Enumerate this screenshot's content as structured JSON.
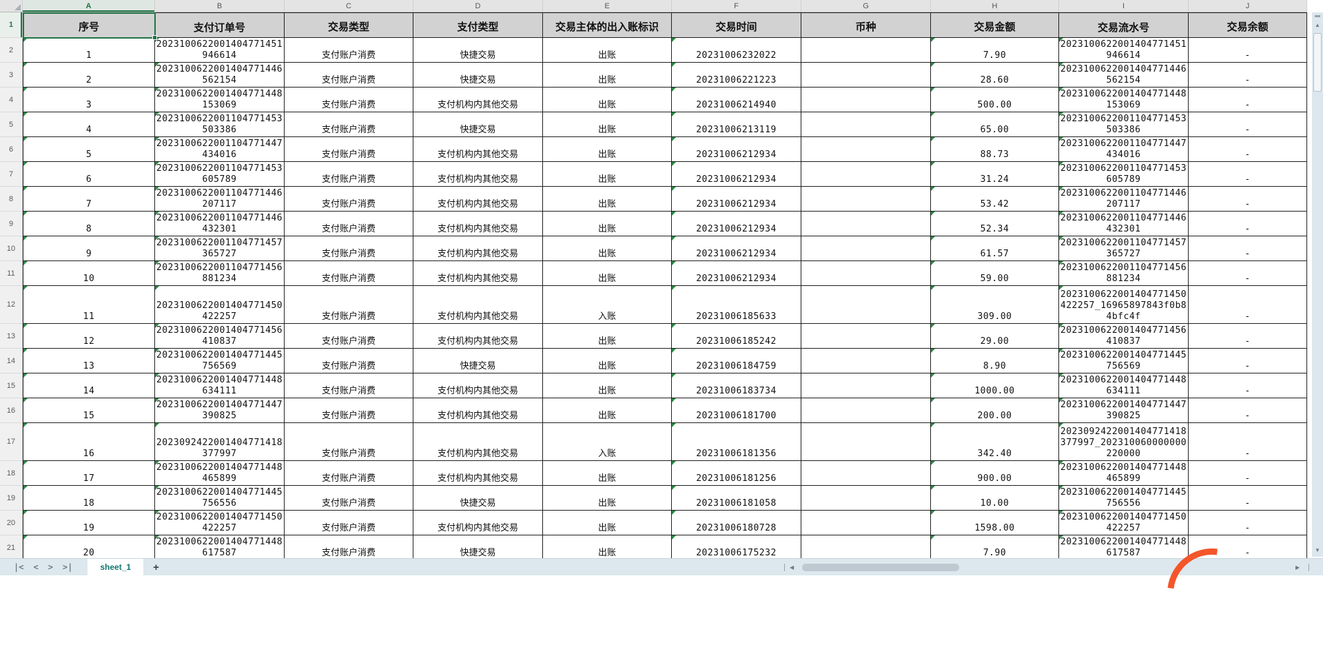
{
  "sheet": {
    "column_letters": [
      "A",
      "B",
      "C",
      "D",
      "E",
      "F",
      "G",
      "H",
      "I",
      "J"
    ],
    "selected_cell": "A1",
    "header_row": [
      "序号",
      "支付订单号",
      "交易类型",
      "支付类型",
      "交易主体的出入账标识",
      "交易时间",
      "币种",
      "交易金额",
      "交易流水号",
      "交易余额"
    ],
    "row_numbers": [
      "1",
      "2",
      "3",
      "4",
      "5",
      "6",
      "7",
      "8",
      "9",
      "10",
      "11",
      "12",
      "13",
      "14",
      "15",
      "16",
      "17",
      "18",
      "19",
      "20",
      "21"
    ],
    "error_marker_columns": [
      "no",
      "order",
      "time",
      "amount",
      "flow_no"
    ],
    "rows": [
      {
        "no": "1",
        "order": "2023100622001404771451\n946614",
        "txn_type": "支付账户消费",
        "pay_type": "快捷交易",
        "inout": "出账",
        "time": "20231006232022",
        "currency": "",
        "amount": "7.90",
        "flow_no": "2023100622001404771451\n946614",
        "balance": "-",
        "tall": false
      },
      {
        "no": "2",
        "order": "2023100622001404771446\n562154",
        "txn_type": "支付账户消费",
        "pay_type": "快捷交易",
        "inout": "出账",
        "time": "20231006221223",
        "currency": "",
        "amount": "28.60",
        "flow_no": "2023100622001404771446\n562154",
        "balance": "-",
        "tall": false
      },
      {
        "no": "3",
        "order": "2023100622001404771448\n153069",
        "txn_type": "支付账户消费",
        "pay_type": "支付机构内其他交易",
        "inout": "出账",
        "time": "20231006214940",
        "currency": "",
        "amount": "500.00",
        "flow_no": "2023100622001404771448\n153069",
        "balance": "-",
        "tall": false
      },
      {
        "no": "4",
        "order": "2023100622001104771453\n503386",
        "txn_type": "支付账户消费",
        "pay_type": "快捷交易",
        "inout": "出账",
        "time": "20231006213119",
        "currency": "",
        "amount": "65.00",
        "flow_no": "2023100622001104771453\n503386",
        "balance": "-",
        "tall": false
      },
      {
        "no": "5",
        "order": "2023100622001104771447\n434016",
        "txn_type": "支付账户消费",
        "pay_type": "支付机构内其他交易",
        "inout": "出账",
        "time": "20231006212934",
        "currency": "",
        "amount": "88.73",
        "flow_no": "2023100622001104771447\n434016",
        "balance": "-",
        "tall": false
      },
      {
        "no": "6",
        "order": "2023100622001104771453\n605789",
        "txn_type": "支付账户消费",
        "pay_type": "支付机构内其他交易",
        "inout": "出账",
        "time": "20231006212934",
        "currency": "",
        "amount": "31.24",
        "flow_no": "2023100622001104771453\n605789",
        "balance": "-",
        "tall": false
      },
      {
        "no": "7",
        "order": "2023100622001104771446\n207117",
        "txn_type": "支付账户消费",
        "pay_type": "支付机构内其他交易",
        "inout": "出账",
        "time": "20231006212934",
        "currency": "",
        "amount": "53.42",
        "flow_no": "2023100622001104771446\n207117",
        "balance": "-",
        "tall": false
      },
      {
        "no": "8",
        "order": "2023100622001104771446\n432301",
        "txn_type": "支付账户消费",
        "pay_type": "支付机构内其他交易",
        "inout": "出账",
        "time": "20231006212934",
        "currency": "",
        "amount": "52.34",
        "flow_no": "2023100622001104771446\n432301",
        "balance": "-",
        "tall": false
      },
      {
        "no": "9",
        "order": "2023100622001104771457\n365727",
        "txn_type": "支付账户消费",
        "pay_type": "支付机构内其他交易",
        "inout": "出账",
        "time": "20231006212934",
        "currency": "",
        "amount": "61.57",
        "flow_no": "2023100622001104771457\n365727",
        "balance": "-",
        "tall": false
      },
      {
        "no": "10",
        "order": "2023100622001104771456\n881234",
        "txn_type": "支付账户消费",
        "pay_type": "支付机构内其他交易",
        "inout": "出账",
        "time": "20231006212934",
        "currency": "",
        "amount": "59.00",
        "flow_no": "2023100622001104771456\n881234",
        "balance": "-",
        "tall": false
      },
      {
        "no": "11",
        "order": "2023100622001404771450\n422257",
        "txn_type": "支付账户消费",
        "pay_type": "支付机构内其他交易",
        "inout": "入账",
        "time": "20231006185633",
        "currency": "",
        "amount": "309.00",
        "flow_no": "2023100622001404771450\n422257_16965897843f0b8\n4bfc4f",
        "balance": "-",
        "tall": true
      },
      {
        "no": "12",
        "order": "2023100622001404771456\n410837",
        "txn_type": "支付账户消费",
        "pay_type": "支付机构内其他交易",
        "inout": "出账",
        "time": "20231006185242",
        "currency": "",
        "amount": "29.00",
        "flow_no": "2023100622001404771456\n410837",
        "balance": "-",
        "tall": false
      },
      {
        "no": "13",
        "order": "2023100622001404771445\n756569",
        "txn_type": "支付账户消费",
        "pay_type": "快捷交易",
        "inout": "出账",
        "time": "20231006184759",
        "currency": "",
        "amount": "8.90",
        "flow_no": "2023100622001404771445\n756569",
        "balance": "-",
        "tall": false
      },
      {
        "no": "14",
        "order": "2023100622001404771448\n634111",
        "txn_type": "支付账户消费",
        "pay_type": "支付机构内其他交易",
        "inout": "出账",
        "time": "20231006183734",
        "currency": "",
        "amount": "1000.00",
        "flow_no": "2023100622001404771448\n634111",
        "balance": "-",
        "tall": false
      },
      {
        "no": "15",
        "order": "2023100622001404771447\n390825",
        "txn_type": "支付账户消费",
        "pay_type": "支付机构内其他交易",
        "inout": "出账",
        "time": "20231006181700",
        "currency": "",
        "amount": "200.00",
        "flow_no": "2023100622001404771447\n390825",
        "balance": "-",
        "tall": false
      },
      {
        "no": "16",
        "order": "2023092422001404771418\n377997",
        "txn_type": "支付账户消费",
        "pay_type": "支付机构内其他交易",
        "inout": "入账",
        "time": "20231006181356",
        "currency": "",
        "amount": "342.40",
        "flow_no": "2023092422001404771418\n377997_202310060000000\n220000",
        "balance": "-",
        "tall": true
      },
      {
        "no": "17",
        "order": "2023100622001404771448\n465899",
        "txn_type": "支付账户消费",
        "pay_type": "支付机构内其他交易",
        "inout": "出账",
        "time": "20231006181256",
        "currency": "",
        "amount": "900.00",
        "flow_no": "2023100622001404771448\n465899",
        "balance": "-",
        "tall": false
      },
      {
        "no": "18",
        "order": "2023100622001404771445\n756556",
        "txn_type": "支付账户消费",
        "pay_type": "快捷交易",
        "inout": "出账",
        "time": "20231006181058",
        "currency": "",
        "amount": "10.00",
        "flow_no": "2023100622001404771445\n756556",
        "balance": "-",
        "tall": false
      },
      {
        "no": "19",
        "order": "2023100622001404771450\n422257",
        "txn_type": "支付账户消费",
        "pay_type": "支付机构内其他交易",
        "inout": "出账",
        "time": "20231006180728",
        "currency": "",
        "amount": "1598.00",
        "flow_no": "2023100622001404771450\n422257",
        "balance": "-",
        "tall": false
      },
      {
        "no": "20",
        "order": "2023100622001404771448\n617587",
        "txn_type": "支付账户消费",
        "pay_type": "快捷交易",
        "inout": "出账",
        "time": "20231006175232",
        "currency": "",
        "amount": "7.90",
        "flow_no": "2023100622001404771448\n617587",
        "balance": "-",
        "tall": false
      }
    ]
  },
  "tabbar": {
    "sheet_tab": "sheet_1",
    "add_sheet": "+",
    "nav_first": "|<",
    "nav_prev": "<",
    "nav_next": ">",
    "nav_last": ">|"
  },
  "scroll_icons": {
    "up": "▲",
    "down": "▼",
    "left": "◀",
    "right": "▶"
  },
  "colors": {
    "selection_green": "#217346",
    "error_triangle_green": "#2a8a43",
    "header_fill": "#d2d2d2",
    "tab_text_teal": "#13756f",
    "bar_background": "#dce8ee",
    "logo_orange": "#f4562a"
  }
}
